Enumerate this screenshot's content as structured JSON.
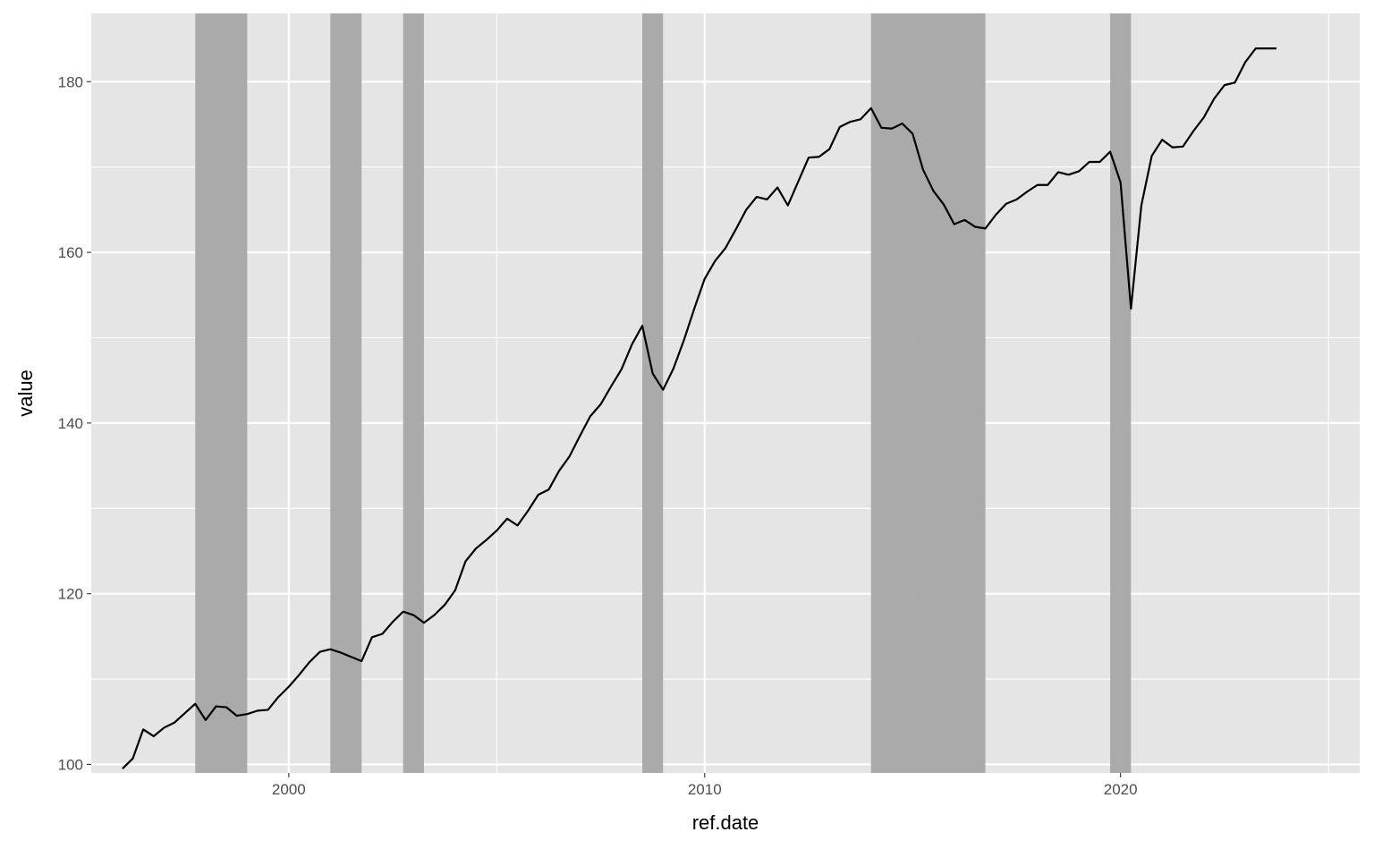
{
  "chart_data": {
    "type": "line",
    "title": "",
    "xlabel": "ref.date",
    "ylabel": "value",
    "xlim": [
      1995.25,
      2025.75
    ],
    "ylim": [
      99.0,
      188.0
    ],
    "x_ticks": [
      2000,
      2010,
      2020
    ],
    "y_ticks": [
      100,
      120,
      140,
      160,
      180
    ],
    "grid": true,
    "legend": "none",
    "colors": {
      "panel": "#e5e5e5",
      "grid": "#ffffff",
      "line": "#000000",
      "band": "#a6a6a6"
    },
    "shaded_periods": [
      [
        1997.75,
        1999.0
      ],
      [
        2001.0,
        2001.75
      ],
      [
        2002.75,
        2003.25
      ],
      [
        2008.5,
        2009.0
      ],
      [
        2014.0,
        2016.75
      ],
      [
        2019.75,
        2020.25
      ]
    ],
    "series": [
      {
        "x": [
          1996.0,
          1996.25,
          1996.5,
          1996.75,
          1997.0,
          1997.25,
          1997.5,
          1997.75,
          1998.0,
          1998.25,
          1998.5,
          1998.75,
          1999.0,
          1999.25,
          1999.5,
          1999.75,
          2000.0,
          2000.25,
          2000.5,
          2000.75,
          2001.0,
          2001.25,
          2001.5,
          2001.75,
          2002.0,
          2002.25,
          2002.5,
          2002.75,
          2003.0,
          2003.25,
          2003.5,
          2003.75,
          2004.0,
          2004.25,
          2004.5,
          2004.75,
          2005.0,
          2005.25,
          2005.5,
          2005.75,
          2006.0,
          2006.25,
          2006.5,
          2006.75,
          2007.0,
          2007.25,
          2007.5,
          2007.75,
          2008.0,
          2008.25,
          2008.5,
          2008.75,
          2009.0,
          2009.25,
          2009.5,
          2009.75,
          2010.0,
          2010.25,
          2010.5,
          2010.75,
          2011.0,
          2011.25,
          2011.5,
          2011.75,
          2012.0,
          2012.25,
          2012.5,
          2012.75,
          2013.0,
          2013.25,
          2013.5,
          2013.75,
          2014.0,
          2014.25,
          2014.5,
          2014.75,
          2015.0,
          2015.25,
          2015.5,
          2015.75,
          2016.0,
          2016.25,
          2016.5,
          2016.75,
          2017.0,
          2017.25,
          2017.5,
          2017.75,
          2018.0,
          2018.25,
          2018.5,
          2018.75,
          2019.0,
          2019.25,
          2019.5,
          2019.75,
          2020.0,
          2020.25,
          2020.5,
          2020.75,
          2021.0,
          2021.25,
          2021.5,
          2021.75,
          2022.0,
          2022.25,
          2022.5,
          2022.75,
          2023.0,
          2023.25,
          2023.5,
          2023.75
        ],
        "values": [
          99.5,
          100.7,
          104.1,
          103.3,
          104.3,
          104.9,
          106.0,
          107.1,
          105.2,
          106.8,
          106.7,
          105.7,
          105.9,
          106.3,
          106.4,
          107.9,
          109.1,
          110.5,
          112.0,
          113.2,
          113.5,
          113.1,
          112.6,
          112.1,
          114.9,
          115.3,
          116.7,
          117.9,
          117.5,
          116.6,
          117.5,
          118.7,
          120.4,
          123.8,
          125.3,
          126.3,
          127.4,
          128.8,
          128.0,
          129.7,
          131.6,
          132.2,
          134.4,
          136.1,
          138.5,
          140.8,
          142.2,
          144.3,
          146.3,
          149.2,
          151.4,
          145.8,
          143.9,
          146.4,
          149.7,
          153.4,
          156.9,
          159.0,
          160.5,
          162.7,
          165.0,
          166.5,
          166.2,
          167.6,
          165.5,
          168.3,
          171.1,
          171.2,
          172.1,
          174.7,
          175.3,
          175.6,
          176.9,
          174.6,
          174.5,
          175.1,
          173.9,
          169.7,
          167.2,
          165.6,
          163.3,
          163.8,
          163.0,
          162.8,
          164.4,
          165.7,
          166.2,
          167.1,
          167.9,
          167.9,
          169.4,
          169.1,
          169.5,
          170.6,
          170.6,
          171.8,
          168.2,
          153.4,
          165.5,
          171.3,
          173.2,
          172.3,
          172.4,
          174.2,
          175.8,
          178.0,
          179.6,
          179.9,
          182.3,
          183.9,
          183.9,
          183.9
        ]
      }
    ]
  }
}
